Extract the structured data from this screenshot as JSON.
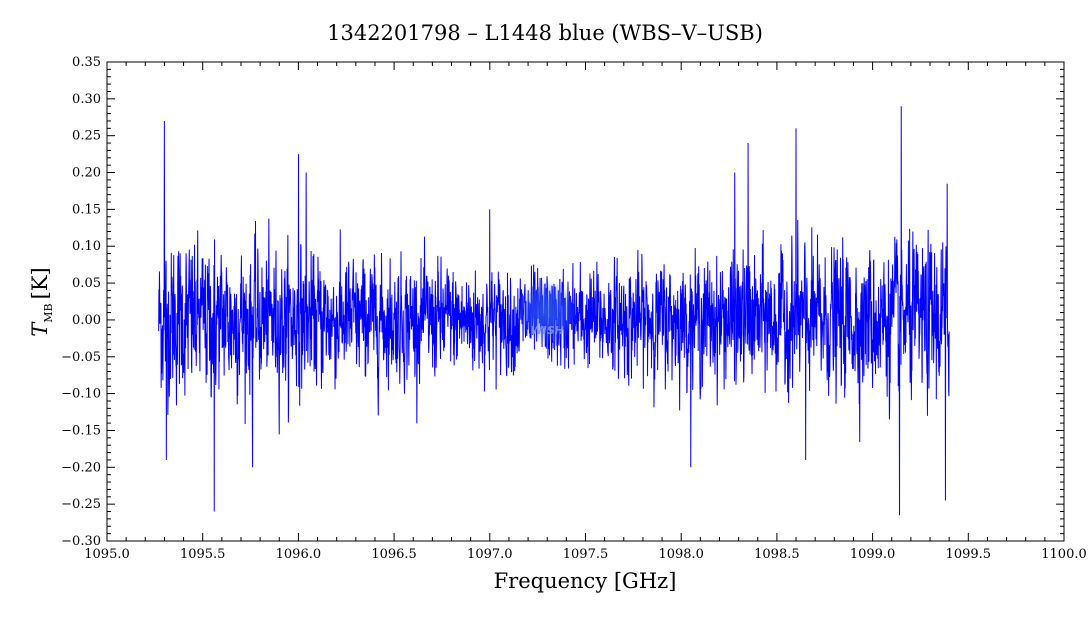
{
  "chart_data": {
    "type": "line",
    "title": "1342201798 – L1448 blue (WBS–V–USB)",
    "xlabel": "Frequency [GHz]",
    "ylabel": {
      "main": "T",
      "sub": "MB",
      "unit": "[K]"
    },
    "xlim": [
      1095.0,
      1100.0
    ],
    "ylim": [
      -0.3,
      0.35
    ],
    "xticks": [
      1095.0,
      1095.5,
      1096.0,
      1096.5,
      1097.0,
      1097.5,
      1098.0,
      1098.5,
      1099.0,
      1099.5,
      1100.0
    ],
    "xtick_labels": [
      "1095.0",
      "1095.5",
      "1096.0",
      "1096.5",
      "1097.0",
      "1097.5",
      "1098.0",
      "1098.5",
      "1099.0",
      "1099.5",
      "1100.0"
    ],
    "yticks": [
      -0.3,
      -0.25,
      -0.2,
      -0.15,
      -0.1,
      -0.05,
      0.0,
      0.05,
      0.1,
      0.15,
      0.2,
      0.25,
      0.3,
      0.35
    ],
    "ytick_labels": [
      "−0.30",
      "−0.25",
      "−0.20",
      "−0.15",
      "−0.10",
      "−0.05",
      "0.00",
      "0.05",
      "0.10",
      "0.15",
      "0.20",
      "0.25",
      "0.30",
      "0.35"
    ],
    "grid": false,
    "series": [
      {
        "name": "",
        "color": "#0000ff",
        "x_range": [
          1095.27,
          1099.4
        ],
        "noise_sigma": 0.06,
        "noise_envelope": [
          {
            "x": 1095.27,
            "sigma": 0.075
          },
          {
            "x": 1095.8,
            "sigma": 0.065
          },
          {
            "x": 1096.5,
            "sigma": 0.055
          },
          {
            "x": 1097.3,
            "sigma": 0.045
          },
          {
            "x": 1098.0,
            "sigma": 0.055
          },
          {
            "x": 1098.7,
            "sigma": 0.065
          },
          {
            "x": 1099.4,
            "sigma": 0.075
          }
        ],
        "spikes": [
          {
            "x": 1095.3,
            "y": 0.27
          },
          {
            "x": 1095.31,
            "y": -0.19
          },
          {
            "x": 1095.56,
            "y": -0.26
          },
          {
            "x": 1095.76,
            "y": -0.2
          },
          {
            "x": 1096.0,
            "y": 0.225
          },
          {
            "x": 1096.04,
            "y": 0.2
          },
          {
            "x": 1097.0,
            "y": 0.15
          },
          {
            "x": 1098.05,
            "y": -0.2
          },
          {
            "x": 1098.28,
            "y": 0.2
          },
          {
            "x": 1098.35,
            "y": 0.24
          },
          {
            "x": 1098.6,
            "y": 0.26
          },
          {
            "x": 1098.65,
            "y": -0.19
          },
          {
            "x": 1099.15,
            "y": 0.29
          },
          {
            "x": 1099.14,
            "y": -0.265
          },
          {
            "x": 1099.38,
            "y": -0.245
          },
          {
            "x": 1099.39,
            "y": 0.185
          }
        ]
      }
    ],
    "watermark": {
      "text": "WISH",
      "x": 1097.3,
      "y": 0.0,
      "color": "#6a7fd8"
    }
  }
}
